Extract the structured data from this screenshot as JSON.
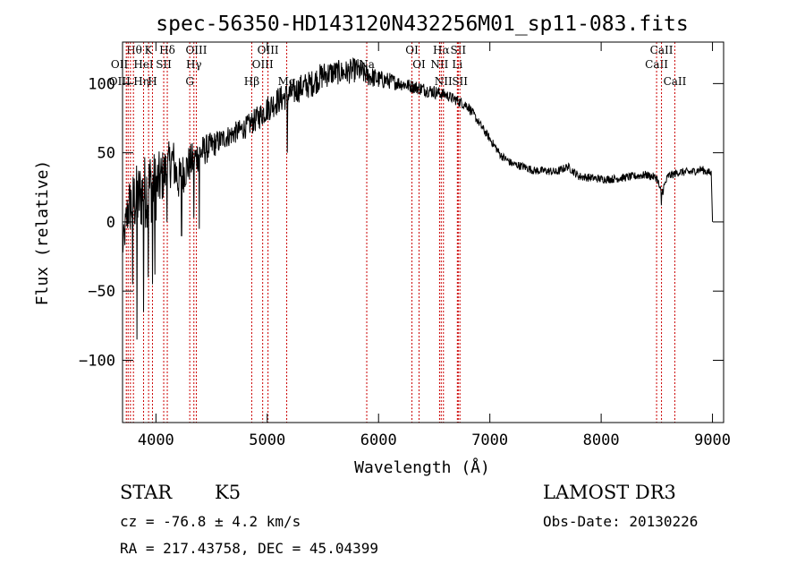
{
  "chart_data": {
    "type": "line",
    "title": "spec-56350-HD143120N432256M01_sp11-083.fits",
    "xlabel": "Wavelength (Å)",
    "ylabel": "Flux (relative)",
    "xlim": [
      3700,
      9100
    ],
    "ylim": [
      -145,
      130
    ],
    "x_ticks": [
      4000,
      5000,
      6000,
      7000,
      8000,
      9000
    ],
    "y_ticks": [
      -100,
      -50,
      0,
      50,
      100
    ],
    "grid": false,
    "series": [
      {
        "name": "flux",
        "x": [
          3700,
          3750,
          3800,
          3850,
          3900,
          3950,
          4000,
          4050,
          4100,
          4150,
          4200,
          4300,
          4400,
          4500,
          4600,
          4700,
          4800,
          4900,
          5000,
          5100,
          5200,
          5300,
          5400,
          5500,
          5600,
          5700,
          5800,
          5900,
          6000,
          6100,
          6200,
          6300,
          6400,
          6500,
          6600,
          6700,
          6800,
          6900,
          7000,
          7100,
          7200,
          7300,
          7400,
          7500,
          7600,
          7700,
          7800,
          7900,
          8000,
          8100,
          8200,
          8300,
          8400,
          8500,
          8540,
          8600,
          8700,
          8800,
          8900,
          8990,
          9000
        ],
        "values": [
          -20,
          10,
          15,
          18,
          22,
          26,
          25,
          32,
          38,
          45,
          30,
          42,
          50,
          55,
          60,
          64,
          68,
          74,
          82,
          88,
          92,
          97,
          100,
          106,
          108,
          108,
          110,
          106,
          103,
          102,
          100,
          98,
          96,
          94,
          92,
          88,
          84,
          72,
          60,
          48,
          42,
          40,
          37,
          37,
          36,
          40,
          33,
          32,
          31,
          31,
          32,
          33,
          34,
          32,
          20,
          33,
          36,
          36,
          38,
          35,
          0
        ],
        "noise": [
          10,
          20,
          25,
          26,
          28,
          28,
          25,
          20,
          18,
          18,
          16,
          14,
          12,
          10,
          8,
          8,
          8,
          9,
          10,
          10,
          10,
          10,
          10,
          10,
          9,
          9,
          9,
          8,
          7,
          6,
          5,
          5,
          5,
          5,
          4,
          4,
          4,
          3,
          3,
          3,
          3,
          3,
          3,
          3,
          3,
          3,
          3,
          3,
          3,
          3,
          3,
          3,
          3,
          3,
          4,
          3,
          3,
          3,
          3,
          3,
          2
        ],
        "dips": [
          {
            "x": 3790,
            "value": -45
          },
          {
            "x": 3830,
            "value": -85
          },
          {
            "x": 3890,
            "value": -65
          },
          {
            "x": 3930,
            "value": -40
          },
          {
            "x": 3970,
            "value": -45
          },
          {
            "x": 3990,
            "value": -38
          },
          {
            "x": 4100,
            "value": 0
          },
          {
            "x": 4230,
            "value": -10
          },
          {
            "x": 4340,
            "value": 3
          },
          {
            "x": 4390,
            "value": -5
          },
          {
            "x": 5180,
            "value": 50
          },
          {
            "x": 8540,
            "value": 12
          }
        ]
      }
    ],
    "line_markers": [
      {
        "x": 3734,
        "label": "Hθ",
        "row": 0,
        "anchor": "start"
      },
      {
        "x": 3750,
        "label": "OII",
        "row": 1,
        "anchor": "end"
      },
      {
        "x": 3771,
        "label": "OIII",
        "row": 2,
        "anchor": "end"
      },
      {
        "x": 3798,
        "label": "Hη",
        "row": 2,
        "anchor": "start"
      },
      {
        "x": 3889,
        "label": "HeI",
        "row": 1,
        "anchor": "middle"
      },
      {
        "x": 3934,
        "label": "K",
        "row": 0,
        "anchor": "middle"
      },
      {
        "x": 3969,
        "label": "H",
        "row": 2,
        "anchor": "middle"
      },
      {
        "x": 4070,
        "label": "SII",
        "row": 1,
        "anchor": "middle"
      },
      {
        "x": 4102,
        "label": "Hδ",
        "row": 0,
        "anchor": "middle"
      },
      {
        "x": 4304,
        "label": "G",
        "row": 2,
        "anchor": "middle"
      },
      {
        "x": 4341,
        "label": "Hγ",
        "row": 1,
        "anchor": "middle"
      },
      {
        "x": 4363,
        "label": "OIII",
        "row": 0,
        "anchor": "middle"
      },
      {
        "x": 4861,
        "label": "Hβ",
        "row": 2,
        "anchor": "middle"
      },
      {
        "x": 4959,
        "label": "OIII",
        "row": 1,
        "anchor": "middle"
      },
      {
        "x": 5007,
        "label": "OIII",
        "row": 0,
        "anchor": "middle"
      },
      {
        "x": 5175,
        "label": "Mg",
        "row": 2,
        "anchor": "middle"
      },
      {
        "x": 5894,
        "label": "Na",
        "row": 1,
        "anchor": "middle"
      },
      {
        "x": 6300,
        "label": "OI",
        "row": 0,
        "anchor": "middle"
      },
      {
        "x": 6364,
        "label": "OI",
        "row": 1,
        "anchor": "middle"
      },
      {
        "x": 6548,
        "label": "NII",
        "row": 1,
        "anchor": "middle"
      },
      {
        "x": 6563,
        "label": "Hα",
        "row": 0,
        "anchor": "middle"
      },
      {
        "x": 6583,
        "label": "NII",
        "row": 2,
        "anchor": "middle"
      },
      {
        "x": 6708,
        "label": "Li",
        "row": 1,
        "anchor": "middle"
      },
      {
        "x": 6716,
        "label": "SII",
        "row": 0,
        "anchor": "middle"
      },
      {
        "x": 6731,
        "label": "SII",
        "row": 2,
        "anchor": "middle"
      },
      {
        "x": 8498,
        "label": "CaII",
        "row": 1,
        "anchor": "middle"
      },
      {
        "x": 8542,
        "label": "CaII",
        "row": 0,
        "anchor": "middle"
      },
      {
        "x": 8662,
        "label": "CaII",
        "row": 2,
        "anchor": "middle"
      }
    ]
  },
  "info": {
    "class_label": "STAR",
    "subclass": "K5",
    "survey": "LAMOST DR3",
    "velocity": "cz = -76.8 ± 4.2 km/s",
    "obs_date": "Obs-Date: 20130226",
    "coords": "RA = 217.43758, DEC =  45.04399"
  },
  "colors": {
    "axis": "#000000",
    "spectrum": "#000000",
    "marker": "#cc0000"
  }
}
